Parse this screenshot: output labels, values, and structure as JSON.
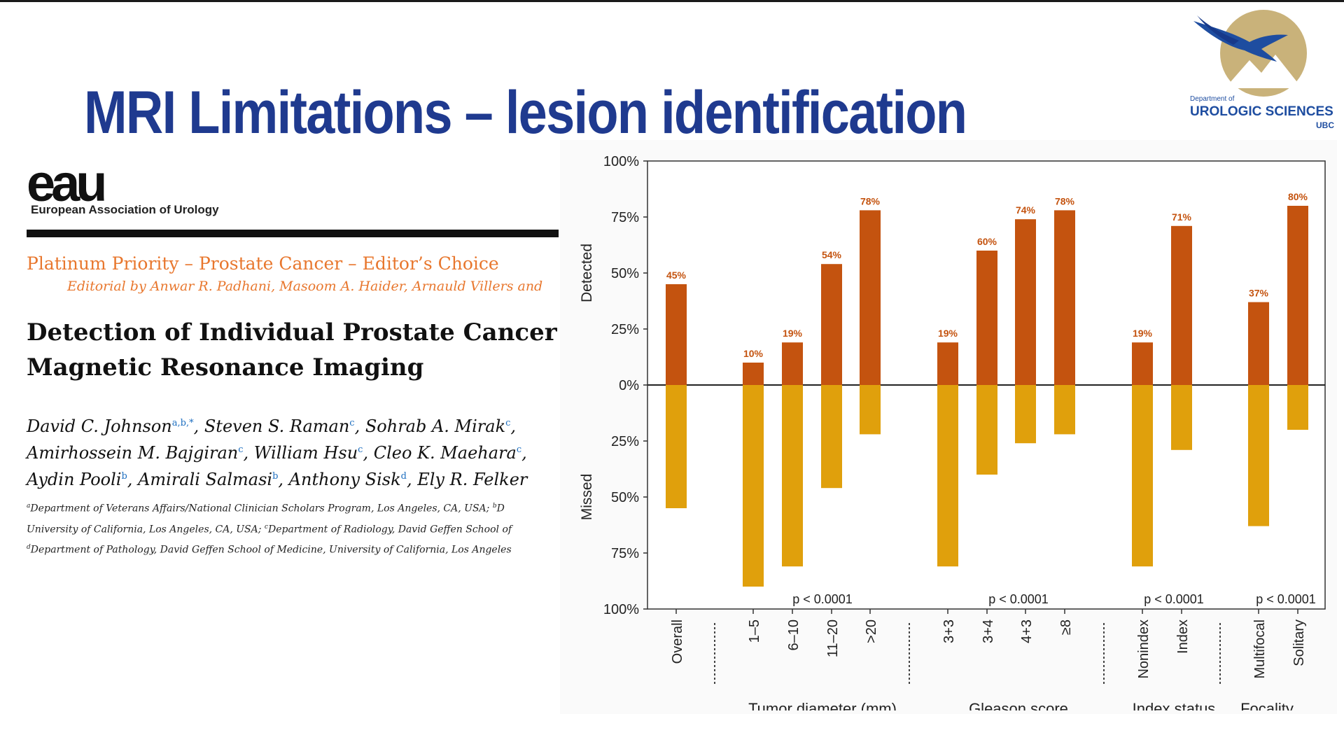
{
  "slide": {
    "title": "MRI Limitations – lesion identification"
  },
  "institution_logo": {
    "dept_line": "Department of",
    "name": "UROLOGIC SCIENCES",
    "abbr": "UBC"
  },
  "paper": {
    "eau_logo": "eau",
    "eau_name": "European Association of Urology",
    "priority": "Platinum Priority – Prostate Cancer – Editor’s Choice",
    "editorial": "Editorial by Anwar R. Padhani, Masoom A. Haider, Arnauld Villers and",
    "title_line1": "Detection of Individual Prostate Cancer F",
    "title_line2": "Magnetic Resonance Imaging",
    "authors": [
      {
        "name": "David C. Johnson",
        "sup": "a,b,*"
      },
      {
        "name": "Steven S. Raman",
        "sup": "c"
      },
      {
        "name": "Sohrab A. Mirak",
        "sup": "c"
      },
      {
        "name": "Amirhossein M. Bajgiran",
        "sup": "c"
      },
      {
        "name": "William Hsu",
        "sup": "c"
      },
      {
        "name": "Cleo K. Maehara",
        "sup": "c"
      },
      {
        "name": "Aydin Pooli",
        "sup": "b"
      },
      {
        "name": "Amirali Salmasi",
        "sup": "b"
      },
      {
        "name": "Anthony Sisk",
        "sup": "d"
      },
      {
        "name": "Ely R. Felker",
        "sup": ""
      }
    ],
    "affiliations": [
      {
        "sup": "a",
        "text": "Department of Veterans Affairs/National Clinician Scholars Program, Los Angeles, CA, USA; ",
        "sup2": "b",
        "text2": "D"
      },
      {
        "sup": "",
        "text": "University of California, Los Angeles, CA, USA; ",
        "sup2": "c",
        "text2": "Department of Radiology, David Geffen School of"
      },
      {
        "sup": "d",
        "text": "Department of Pathology, David Geffen School of Medicine, University of California, Los Angeles",
        "sup2": "",
        "text2": ""
      }
    ]
  },
  "chart_data": {
    "type": "bar",
    "ylabel_top": "Detected",
    "ylabel_bottom": "Missed",
    "yticks": [
      "100%",
      "75%",
      "50%",
      "25%",
      "0%",
      "25%",
      "50%",
      "75%",
      "100%"
    ],
    "ylim": [
      -100,
      100
    ],
    "categories": [
      "Overall",
      "1–5",
      "6–10",
      "11–20",
      ">20",
      "3+3",
      "3+4",
      "4+3",
      "≥8",
      "Nonindex",
      "Index",
      "Multifocal",
      "Solitary"
    ],
    "series": [
      {
        "values": [
          45,
          10,
          19,
          54,
          78,
          19,
          60,
          74,
          78,
          19,
          71,
          37,
          80
        ],
        "labels": [
          "45%",
          "10%",
          "19%",
          "54%",
          "78%",
          "19%",
          "60%",
          "74%",
          "78%",
          "19%",
          "71%",
          "37%",
          "80%"
        ],
        "color": "#c4530f"
      },
      {
        "values": [
          55,
          90,
          81,
          46,
          22,
          81,
          40,
          26,
          22,
          81,
          29,
          63,
          20
        ],
        "color": "#e0a00c"
      }
    ],
    "groups": [
      {
        "name": "Tumor diameter (mm)",
        "p": "p < 0.0001"
      },
      {
        "name": "Gleason score",
        "p": "p < 0.0001"
      },
      {
        "name": "Index status",
        "p": "p < 0.0001"
      },
      {
        "name": "Focality",
        "p": "p < 0.0001"
      }
    ],
    "grid": false
  }
}
